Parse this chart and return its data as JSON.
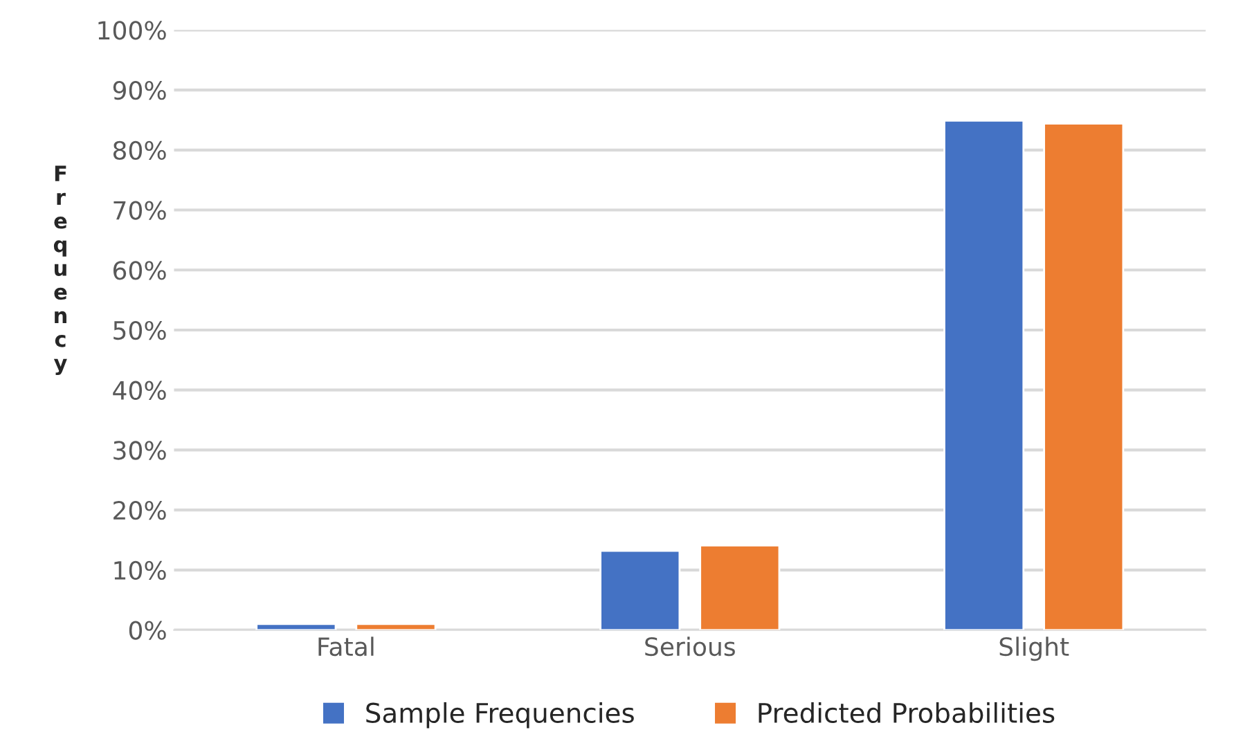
{
  "chart_data": {
    "type": "bar",
    "ylabel": "F\nr\ne\nq\nu\ne\nn\nc\ny",
    "categories": [
      "Fatal",
      "Serious",
      "Slight"
    ],
    "series": [
      {
        "name": "Sample Frequencies",
        "color": "#4472c4",
        "values": [
          1.0,
          13.2,
          84.9
        ]
      },
      {
        "name": "Predicted Probabilities",
        "color": "#ed7d31",
        "values": [
          1.0,
          14.1,
          84.4
        ]
      }
    ],
    "ylim": [
      0,
      100
    ],
    "yticks": [
      {
        "value": 0,
        "label": "0%"
      },
      {
        "value": 10,
        "label": "10%"
      },
      {
        "value": 20,
        "label": "20%"
      },
      {
        "value": 30,
        "label": "30%"
      },
      {
        "value": 40,
        "label": "40%"
      },
      {
        "value": 50,
        "label": "50%"
      },
      {
        "value": 60,
        "label": "60%"
      },
      {
        "value": 70,
        "label": "70%"
      },
      {
        "value": 80,
        "label": "80%"
      },
      {
        "value": 90,
        "label": "90%"
      },
      {
        "value": 100,
        "label": "100%"
      }
    ],
    "grid": "y",
    "legend": "bottom"
  }
}
